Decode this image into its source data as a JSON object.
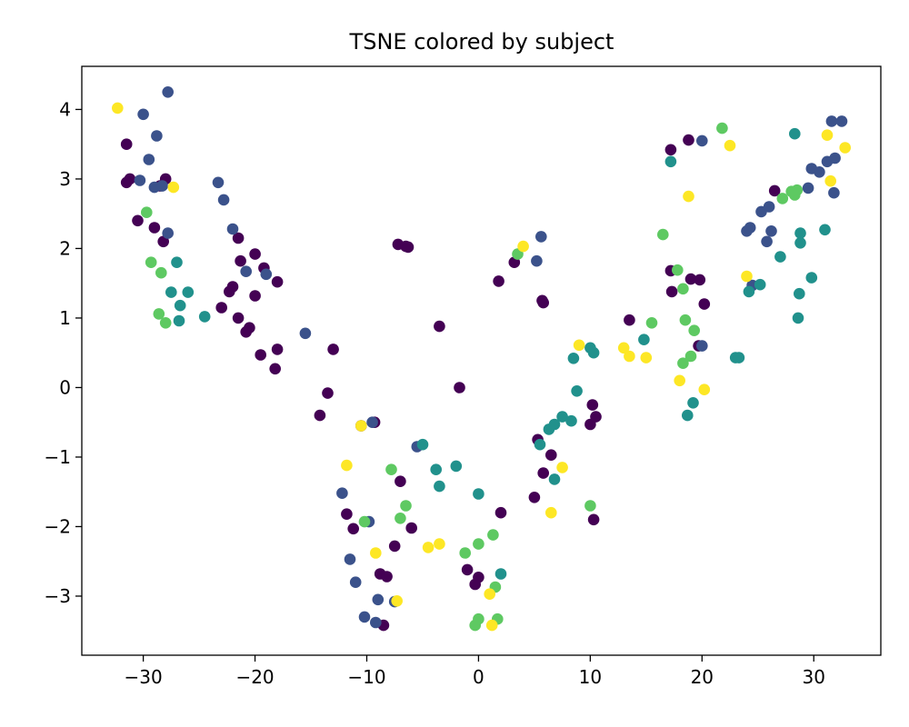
{
  "chart_data": {
    "type": "scatter",
    "title": "TSNE colored by subject",
    "xlabel": "",
    "ylabel": "",
    "xlim": [
      -35.5,
      36
    ],
    "ylim": [
      -3.85,
      4.62
    ],
    "x_ticks": [
      -30,
      -20,
      -10,
      0,
      10,
      20,
      30
    ],
    "x_tick_labels": [
      "−30",
      "−20",
      "−10",
      "0",
      "10",
      "20",
      "30"
    ],
    "y_ticks": [
      -3,
      -2,
      -1,
      0,
      1,
      2,
      3,
      4
    ],
    "y_tick_labels": [
      "−3",
      "−2",
      "−1",
      "0",
      "1",
      "2",
      "3",
      "4"
    ],
    "grid": false,
    "legend": "none",
    "colors": {
      "s0": "#440154",
      "s1": "#3b528b",
      "s2": "#21918c",
      "s3": "#5ec962",
      "s4": "#fde725"
    },
    "series": [
      {
        "color_key": "s0",
        "points": [
          [
            -31.5,
            3.5
          ],
          [
            -31.2,
            3.0
          ],
          [
            -31.5,
            2.95
          ],
          [
            -28.5,
            2.9
          ],
          [
            -28.0,
            3.0
          ],
          [
            -30.5,
            2.4
          ],
          [
            -29.0,
            2.3
          ],
          [
            -28.2,
            2.1
          ],
          [
            -21.5,
            2.15
          ],
          [
            -20,
            1.92
          ],
          [
            -21.3,
            1.82
          ],
          [
            -19.2,
            1.72
          ],
          [
            -18,
            1.52
          ],
          [
            -22,
            1.45
          ],
          [
            -22.3,
            1.38
          ],
          [
            -20,
            1.32
          ],
          [
            -23,
            1.15
          ],
          [
            -21.5,
            1.0
          ],
          [
            -20.5,
            0.86
          ],
          [
            -20.8,
            0.8
          ],
          [
            -18,
            0.55
          ],
          [
            -19.5,
            0.47
          ],
          [
            -18.2,
            0.27
          ],
          [
            -7.2,
            2.06
          ],
          [
            -6.5,
            2.03
          ],
          [
            -6.3,
            2.02
          ],
          [
            -3.5,
            0.88
          ],
          [
            -13,
            0.55
          ],
          [
            -13.5,
            -0.08
          ],
          [
            -14.2,
            -0.4
          ],
          [
            -1.7,
            0.0
          ],
          [
            -10.5,
            -0.55
          ],
          [
            -9.3,
            -0.5
          ],
          [
            -7,
            -1.35
          ],
          [
            -11.8,
            -1.82
          ],
          [
            -11.2,
            -2.03
          ],
          [
            -6,
            -2.02
          ],
          [
            -7.5,
            -2.28
          ],
          [
            2.0,
            -1.8
          ],
          [
            -8.8,
            -2.68
          ],
          [
            -8.2,
            -2.72
          ],
          [
            -1.0,
            -2.62
          ],
          [
            0.0,
            -2.73
          ],
          [
            -0.3,
            -2.83
          ],
          [
            -8.5,
            -3.42
          ],
          [
            1.8,
            1.53
          ],
          [
            3.2,
            1.8
          ],
          [
            5.7,
            1.25
          ],
          [
            5.8,
            1.22
          ],
          [
            5.3,
            -0.75
          ],
          [
            6.5,
            -0.97
          ],
          [
            10,
            -0.53
          ],
          [
            10.5,
            -0.42
          ],
          [
            10.2,
            -0.25
          ],
          [
            5.8,
            -1.23
          ],
          [
            5.0,
            -1.58
          ],
          [
            10.3,
            -1.9
          ],
          [
            13.5,
            0.97
          ],
          [
            17.2,
            3.42
          ],
          [
            18.8,
            3.56
          ],
          [
            17.2,
            1.68
          ],
          [
            17.3,
            1.38
          ],
          [
            19.0,
            1.56
          ],
          [
            19.8,
            1.55
          ],
          [
            20.2,
            1.2
          ],
          [
            19.7,
            0.6
          ],
          [
            26.5,
            2.83
          ]
        ]
      },
      {
        "color_key": "s1",
        "points": [
          [
            -30,
            3.93
          ],
          [
            -27.8,
            4.25
          ],
          [
            -28.8,
            3.62
          ],
          [
            -29.5,
            3.28
          ],
          [
            -30.3,
            2.98
          ],
          [
            -29.0,
            2.88
          ],
          [
            -28.3,
            2.9
          ],
          [
            -27.8,
            2.22
          ],
          [
            -23.3,
            2.95
          ],
          [
            -22.8,
            2.7
          ],
          [
            -22,
            2.28
          ],
          [
            -20.8,
            1.67
          ],
          [
            -19,
            1.63
          ],
          [
            -15.5,
            0.78
          ],
          [
            -9.5,
            -0.5
          ],
          [
            -12.2,
            -1.52
          ],
          [
            -11.5,
            -2.47
          ],
          [
            -9.8,
            -1.93
          ],
          [
            -11,
            -2.8
          ],
          [
            -9,
            -3.05
          ],
          [
            -7.5,
            -3.08
          ],
          [
            -10.2,
            -3.3
          ],
          [
            -9.2,
            -3.38
          ],
          [
            -5.5,
            -0.85
          ],
          [
            5.6,
            2.17
          ],
          [
            5.2,
            1.82
          ],
          [
            20,
            3.55
          ],
          [
            24,
            2.25
          ],
          [
            24.3,
            2.3
          ],
          [
            25.3,
            2.53
          ],
          [
            26.0,
            2.6
          ],
          [
            25.8,
            2.1
          ],
          [
            26.2,
            2.25
          ],
          [
            24.5,
            1.47
          ],
          [
            29.5,
            2.87
          ],
          [
            29.8,
            3.15
          ],
          [
            30.5,
            3.1
          ],
          [
            31.2,
            3.25
          ],
          [
            31.6,
            3.83
          ],
          [
            32.5,
            3.83
          ],
          [
            31.9,
            3.3
          ],
          [
            31.8,
            2.8
          ],
          [
            20,
            0.6
          ]
        ]
      },
      {
        "color_key": "s2",
        "points": [
          [
            -27,
            1.8
          ],
          [
            -27.5,
            1.37
          ],
          [
            -26,
            1.37
          ],
          [
            -26.7,
            1.18
          ],
          [
            -26.8,
            0.96
          ],
          [
            -24.5,
            1.02
          ],
          [
            -5,
            -0.82
          ],
          [
            -3.8,
            -1.18
          ],
          [
            -3.5,
            -1.42
          ],
          [
            -2,
            -1.13
          ],
          [
            0,
            -1.53
          ],
          [
            2,
            -2.68
          ],
          [
            5.5,
            -0.82
          ],
          [
            6.3,
            -0.6
          ],
          [
            6.8,
            -0.53
          ],
          [
            7.5,
            -0.42
          ],
          [
            8.3,
            -0.48
          ],
          [
            6.8,
            -1.32
          ],
          [
            8.5,
            0.42
          ],
          [
            8.8,
            -0.05
          ],
          [
            10.3,
            0.5
          ],
          [
            10.0,
            0.57
          ],
          [
            14.8,
            0.69
          ],
          [
            17.2,
            3.25
          ],
          [
            23,
            0.43
          ],
          [
            23.3,
            0.43
          ],
          [
            24.2,
            1.38
          ],
          [
            25.2,
            1.48
          ],
          [
            27,
            1.88
          ],
          [
            28.3,
            3.65
          ],
          [
            28.8,
            2.22
          ],
          [
            29.8,
            1.58
          ],
          [
            28.7,
            1.35
          ],
          [
            28.6,
            1.0
          ],
          [
            28.8,
            2.08
          ],
          [
            31,
            2.27
          ],
          [
            19.2,
            -0.22
          ],
          [
            18.7,
            -0.4
          ]
        ]
      },
      {
        "color_key": "s3",
        "points": [
          [
            -29.7,
            2.52
          ],
          [
            -29.3,
            1.8
          ],
          [
            -28.4,
            1.65
          ],
          [
            -28.6,
            1.06
          ],
          [
            -28,
            0.93
          ],
          [
            -10.2,
            -1.93
          ],
          [
            -7.8,
            -1.18
          ],
          [
            -6.5,
            -1.7
          ],
          [
            -7,
            -1.88
          ],
          [
            -1.2,
            -2.38
          ],
          [
            0,
            -2.25
          ],
          [
            1.3,
            -2.12
          ],
          [
            1.5,
            -2.87
          ],
          [
            0,
            -3.33
          ],
          [
            1.7,
            -3.33
          ],
          [
            -0.3,
            -3.42
          ],
          [
            3.5,
            1.92
          ],
          [
            10.0,
            -1.7
          ],
          [
            16.5,
            2.2
          ],
          [
            17.8,
            1.69
          ],
          [
            15.5,
            0.93
          ],
          [
            18.3,
            1.42
          ],
          [
            18.5,
            0.97
          ],
          [
            19.3,
            0.82
          ],
          [
            18.3,
            0.35
          ],
          [
            19.0,
            0.45
          ],
          [
            21.8,
            3.73
          ],
          [
            27.2,
            2.72
          ],
          [
            28.3,
            2.77
          ],
          [
            28.5,
            2.84
          ],
          [
            28.0,
            2.82
          ]
        ]
      },
      {
        "color_key": "s4",
        "points": [
          [
            -32.3,
            4.02
          ],
          [
            -27.3,
            2.88
          ],
          [
            -11.8,
            -1.12
          ],
          [
            -10.5,
            -0.55
          ],
          [
            -9.2,
            -2.38
          ],
          [
            -7.3,
            -3.07
          ],
          [
            -4.5,
            -2.3
          ],
          [
            -3.5,
            -2.25
          ],
          [
            1.0,
            -2.97
          ],
          [
            1.2,
            -3.42
          ],
          [
            4.0,
            2.03
          ],
          [
            9.0,
            0.61
          ],
          [
            7.5,
            -1.15
          ],
          [
            6.5,
            -1.8
          ],
          [
            13.0,
            0.57
          ],
          [
            13.5,
            0.45
          ],
          [
            15.0,
            0.43
          ],
          [
            22.5,
            3.48
          ],
          [
            18.8,
            2.75
          ],
          [
            24.0,
            1.6
          ],
          [
            31.2,
            3.63
          ],
          [
            32.8,
            3.45
          ],
          [
            31.5,
            2.97
          ],
          [
            18.0,
            0.1
          ],
          [
            20.2,
            -0.03
          ]
        ]
      }
    ]
  }
}
